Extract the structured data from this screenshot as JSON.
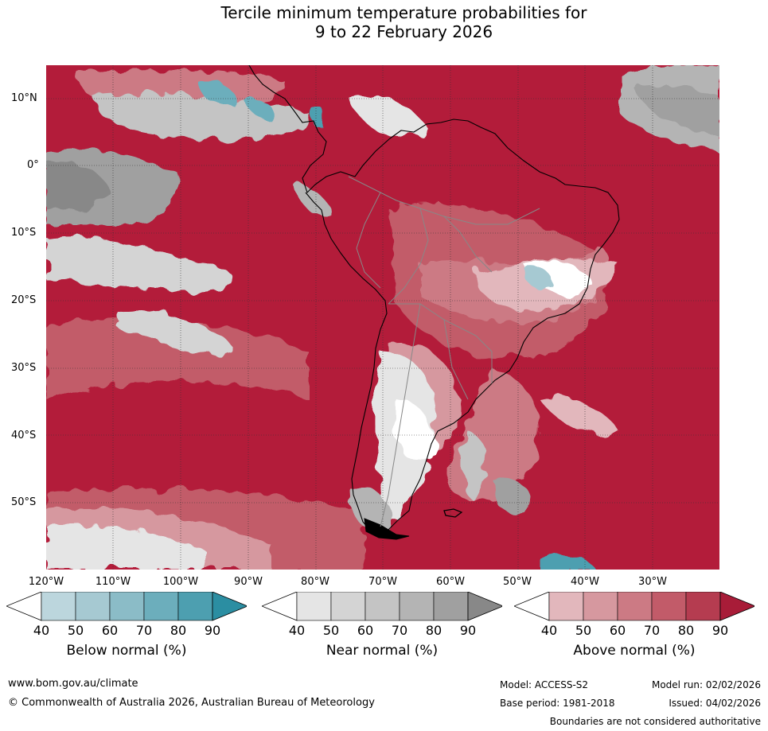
{
  "title": {
    "line1": "Tercile minimum temperature probabilities for",
    "line2": "9 to 22 February 2026"
  },
  "map": {
    "lat_labels": [
      {
        "text": "10°N"
      },
      {
        "text": "0°"
      },
      {
        "text": "10°S"
      },
      {
        "text": "20°S"
      },
      {
        "text": "30°S"
      },
      {
        "text": "40°S"
      },
      {
        "text": "50°S"
      }
    ],
    "lon_labels": [
      {
        "text": "120°W"
      },
      {
        "text": "110°W"
      },
      {
        "text": "100°W"
      },
      {
        "text": "90°W"
      },
      {
        "text": "80°W"
      },
      {
        "text": "70°W"
      },
      {
        "text": "60°W"
      },
      {
        "text": "50°W"
      },
      {
        "text": "40°W"
      },
      {
        "text": "30°W"
      }
    ]
  },
  "colorbars": [
    {
      "name": "below",
      "label": "Below normal (%)",
      "ticks": [
        "40",
        "50",
        "60",
        "70",
        "80",
        "90"
      ],
      "colors": [
        "#bcd6dd",
        "#a6c9d2",
        "#8bbcc7",
        "#6caebc",
        "#4d9fb0",
        "#2b8ea2"
      ]
    },
    {
      "name": "near",
      "label": "Near normal (%)",
      "ticks": [
        "40",
        "50",
        "60",
        "70",
        "80",
        "90"
      ],
      "colors": [
        "#e5e5e5",
        "#d4d4d4",
        "#c4c4c4",
        "#b4b4b4",
        "#a0a0a0",
        "#888888"
      ]
    },
    {
      "name": "above",
      "label": "Above normal (%)",
      "ticks": [
        "40",
        "50",
        "60",
        "70",
        "80",
        "90"
      ],
      "colors": [
        "#e2b7bc",
        "#d6989f",
        "#cc7a84",
        "#c25b69",
        "#b53c50",
        "#a81c38"
      ]
    }
  ],
  "footer": {
    "url": "www.bom.gov.au/climate",
    "copyright": "© Commonwealth of Australia 2026, Australian Bureau of Meteorology",
    "model": "Model: ACCESS-S2",
    "base_period": "Base period: 1981-2018",
    "model_run": "Model run: 02/02/2026",
    "issued": "Issued: 04/02/2026",
    "disclaimer": "Boundaries are not considered authoritative"
  }
}
